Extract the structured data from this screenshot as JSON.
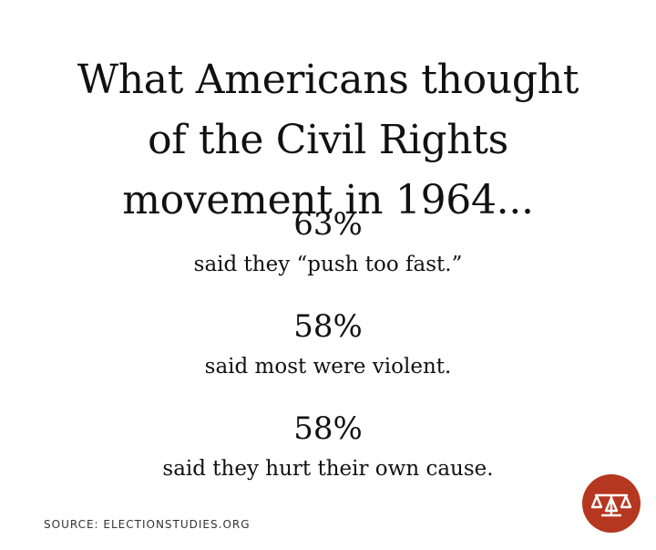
{
  "headline": {
    "lines": [
      "What Americans thought",
      "of the Civil Rights",
      "movement in 1964..."
    ]
  },
  "stats": [
    {
      "value": "63%",
      "caption": "said they “push too fast.”"
    },
    {
      "value": "58%",
      "caption": "said most were violent."
    },
    {
      "value": "58%",
      "caption": "said they hurt their own cause."
    }
  ],
  "source": "SOURCE: ELECTIONSTUDIES.ORG",
  "logo": {
    "icon": "scales-of-justice-icon",
    "color": "#b5371f"
  }
}
